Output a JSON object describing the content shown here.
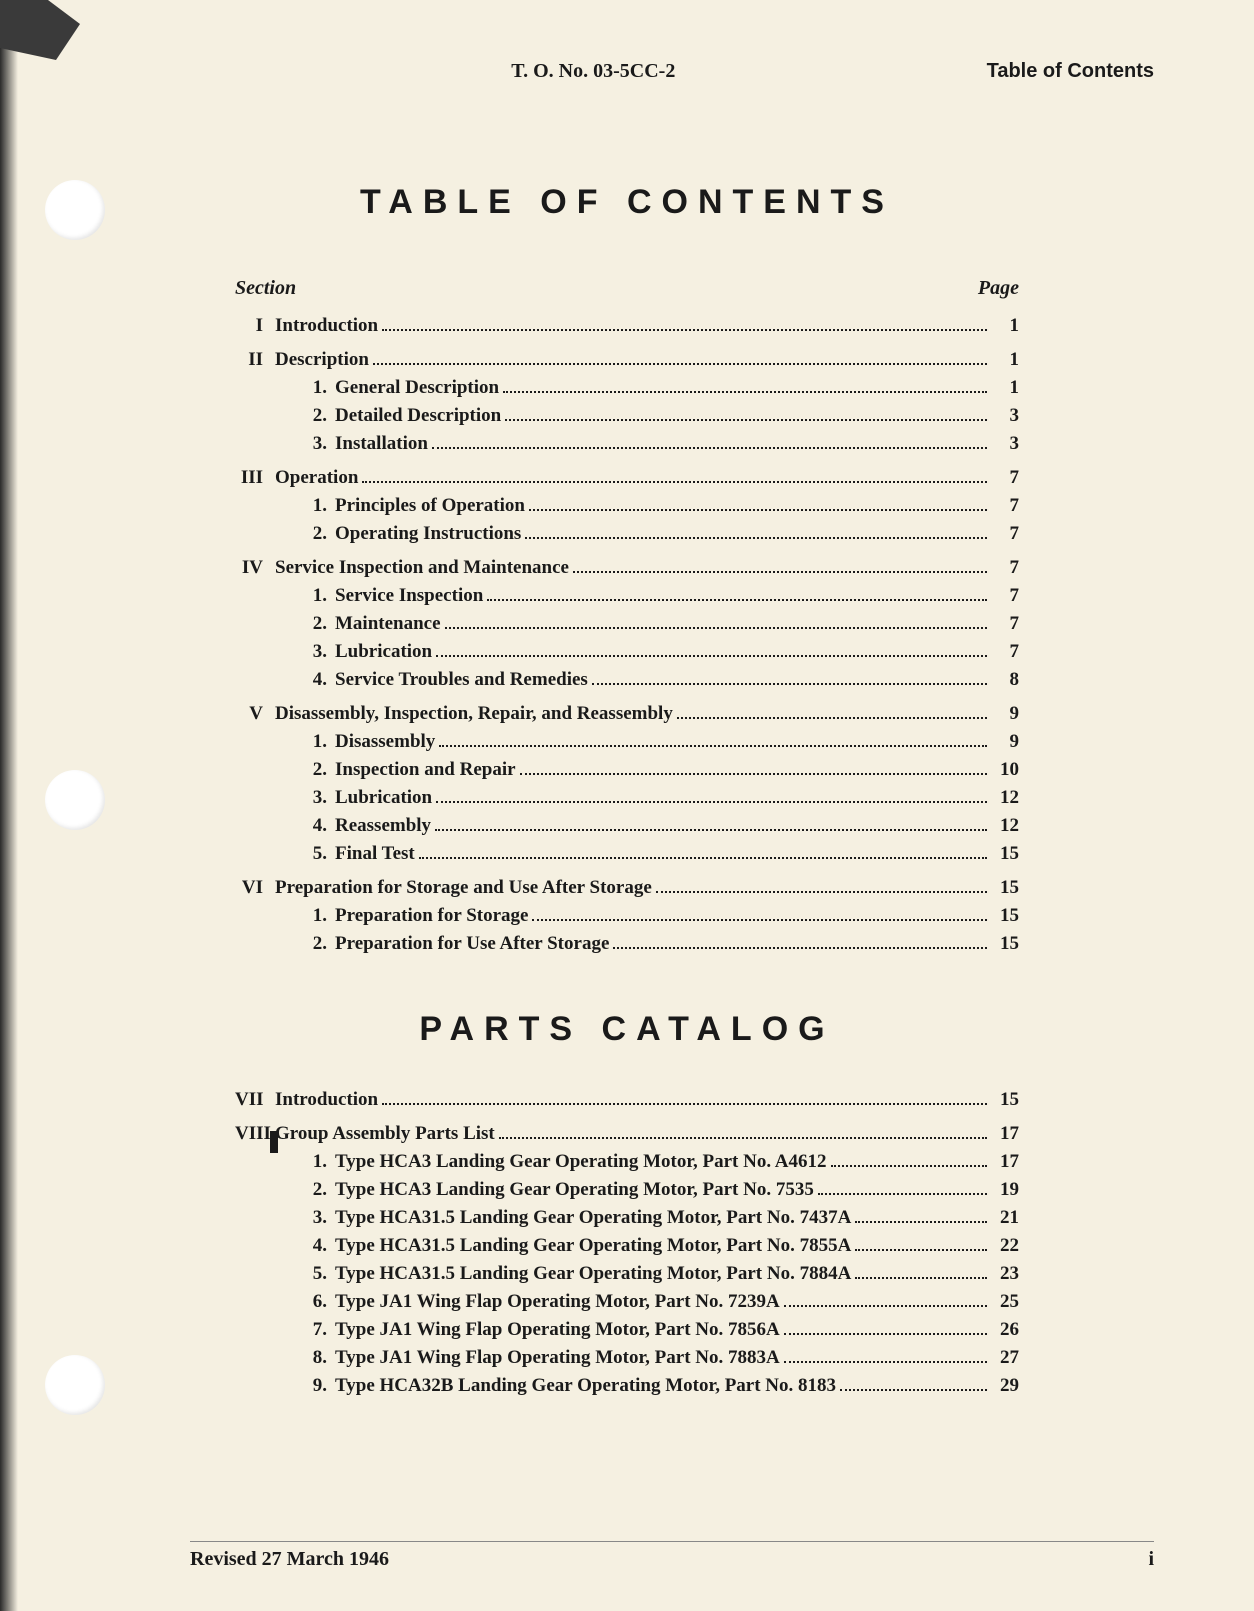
{
  "header": {
    "doc_number": "T. O. No. 03-5CC-2",
    "label": "Table of Contents"
  },
  "title_main": "TABLE OF CONTENTS",
  "title_parts": "PARTS CATALOG",
  "columns": {
    "section": "Section",
    "page": "Page"
  },
  "sections_a": [
    {
      "roman": "I",
      "title": "Introduction",
      "page": "1",
      "subs": []
    },
    {
      "roman": "II",
      "title": "Description",
      "page": "1",
      "subs": [
        {
          "num": "1.",
          "title": "General Description",
          "page": "1"
        },
        {
          "num": "2.",
          "title": "Detailed Description",
          "page": "3"
        },
        {
          "num": "3.",
          "title": "Installation",
          "page": "3"
        }
      ]
    },
    {
      "roman": "III",
      "title": "Operation",
      "page": "7",
      "subs": [
        {
          "num": "1.",
          "title": "Principles of Operation",
          "page": "7"
        },
        {
          "num": "2.",
          "title": "Operating Instructions",
          "page": "7"
        }
      ]
    },
    {
      "roman": "IV",
      "title": "Service Inspection and Maintenance",
      "page": "7",
      "subs": [
        {
          "num": "1.",
          "title": "Service Inspection",
          "page": "7"
        },
        {
          "num": "2.",
          "title": "Maintenance",
          "page": "7"
        },
        {
          "num": "3.",
          "title": "Lubrication",
          "page": "7"
        },
        {
          "num": "4.",
          "title": "Service Troubles and Remedies",
          "page": "8"
        }
      ]
    },
    {
      "roman": "V",
      "title": "Disassembly, Inspection, Repair, and Reassembly",
      "page": "9",
      "subs": [
        {
          "num": "1.",
          "title": "Disassembly",
          "page": "9"
        },
        {
          "num": "2.",
          "title": "Inspection and Repair",
          "page": "10"
        },
        {
          "num": "3.",
          "title": "Lubrication",
          "page": "12"
        },
        {
          "num": "4.",
          "title": "Reassembly",
          "page": "12"
        },
        {
          "num": "5.",
          "title": "Final Test",
          "page": "15"
        }
      ]
    },
    {
      "roman": "VI",
      "title": "Preparation for Storage and Use After Storage",
      "page": "15",
      "subs": [
        {
          "num": "1.",
          "title": "Preparation for Storage",
          "page": "15"
        },
        {
          "num": "2.",
          "title": "Preparation for Use After Storage",
          "page": "15"
        }
      ]
    }
  ],
  "sections_b": [
    {
      "roman": "VII",
      "title": "Introduction",
      "page": "15",
      "subs": []
    },
    {
      "roman": "VIII",
      "title": "Group Assembly Parts List",
      "page": "17",
      "subs": [
        {
          "num": "1.",
          "title": "Type HCA3 Landing Gear Operating Motor, Part No. A4612",
          "page": "17"
        },
        {
          "num": "2.",
          "title": "Type HCA3 Landing Gear Operating Motor, Part No. 7535",
          "page": "19"
        },
        {
          "num": "3.",
          "title": "Type HCA31.5 Landing Gear Operating Motor, Part No. 7437A",
          "page": "21"
        },
        {
          "num": "4.",
          "title": "Type HCA31.5 Landing Gear Operating Motor, Part No. 7855A",
          "page": "22"
        },
        {
          "num": "5.",
          "title": "Type HCA31.5 Landing Gear Operating Motor, Part No. 7884A",
          "page": "23"
        },
        {
          "num": "6.",
          "title": "Type JA1 Wing Flap Operating Motor, Part No. 7239A",
          "page": "25"
        },
        {
          "num": "7.",
          "title": "Type JA1 Wing Flap Operating Motor, Part No. 7856A",
          "page": "26"
        },
        {
          "num": "8.",
          "title": "Type JA1 Wing Flap Operating Motor, Part No. 7883A",
          "page": "27"
        },
        {
          "num": "9.",
          "title": "Type HCA32B Landing Gear Operating Motor, Part No. 8183",
          "page": "29"
        }
      ]
    }
  ],
  "footer": {
    "date": "Revised 27 March 1946",
    "page_num": "i"
  },
  "style": {
    "page_bg": "#f5f0e1",
    "text_color": "#1a1a1a",
    "title_font": "Arial, Helvetica, sans-serif",
    "body_font": "Times New Roman, serif",
    "title_size_pt": 26,
    "body_size_pt": 14
  }
}
